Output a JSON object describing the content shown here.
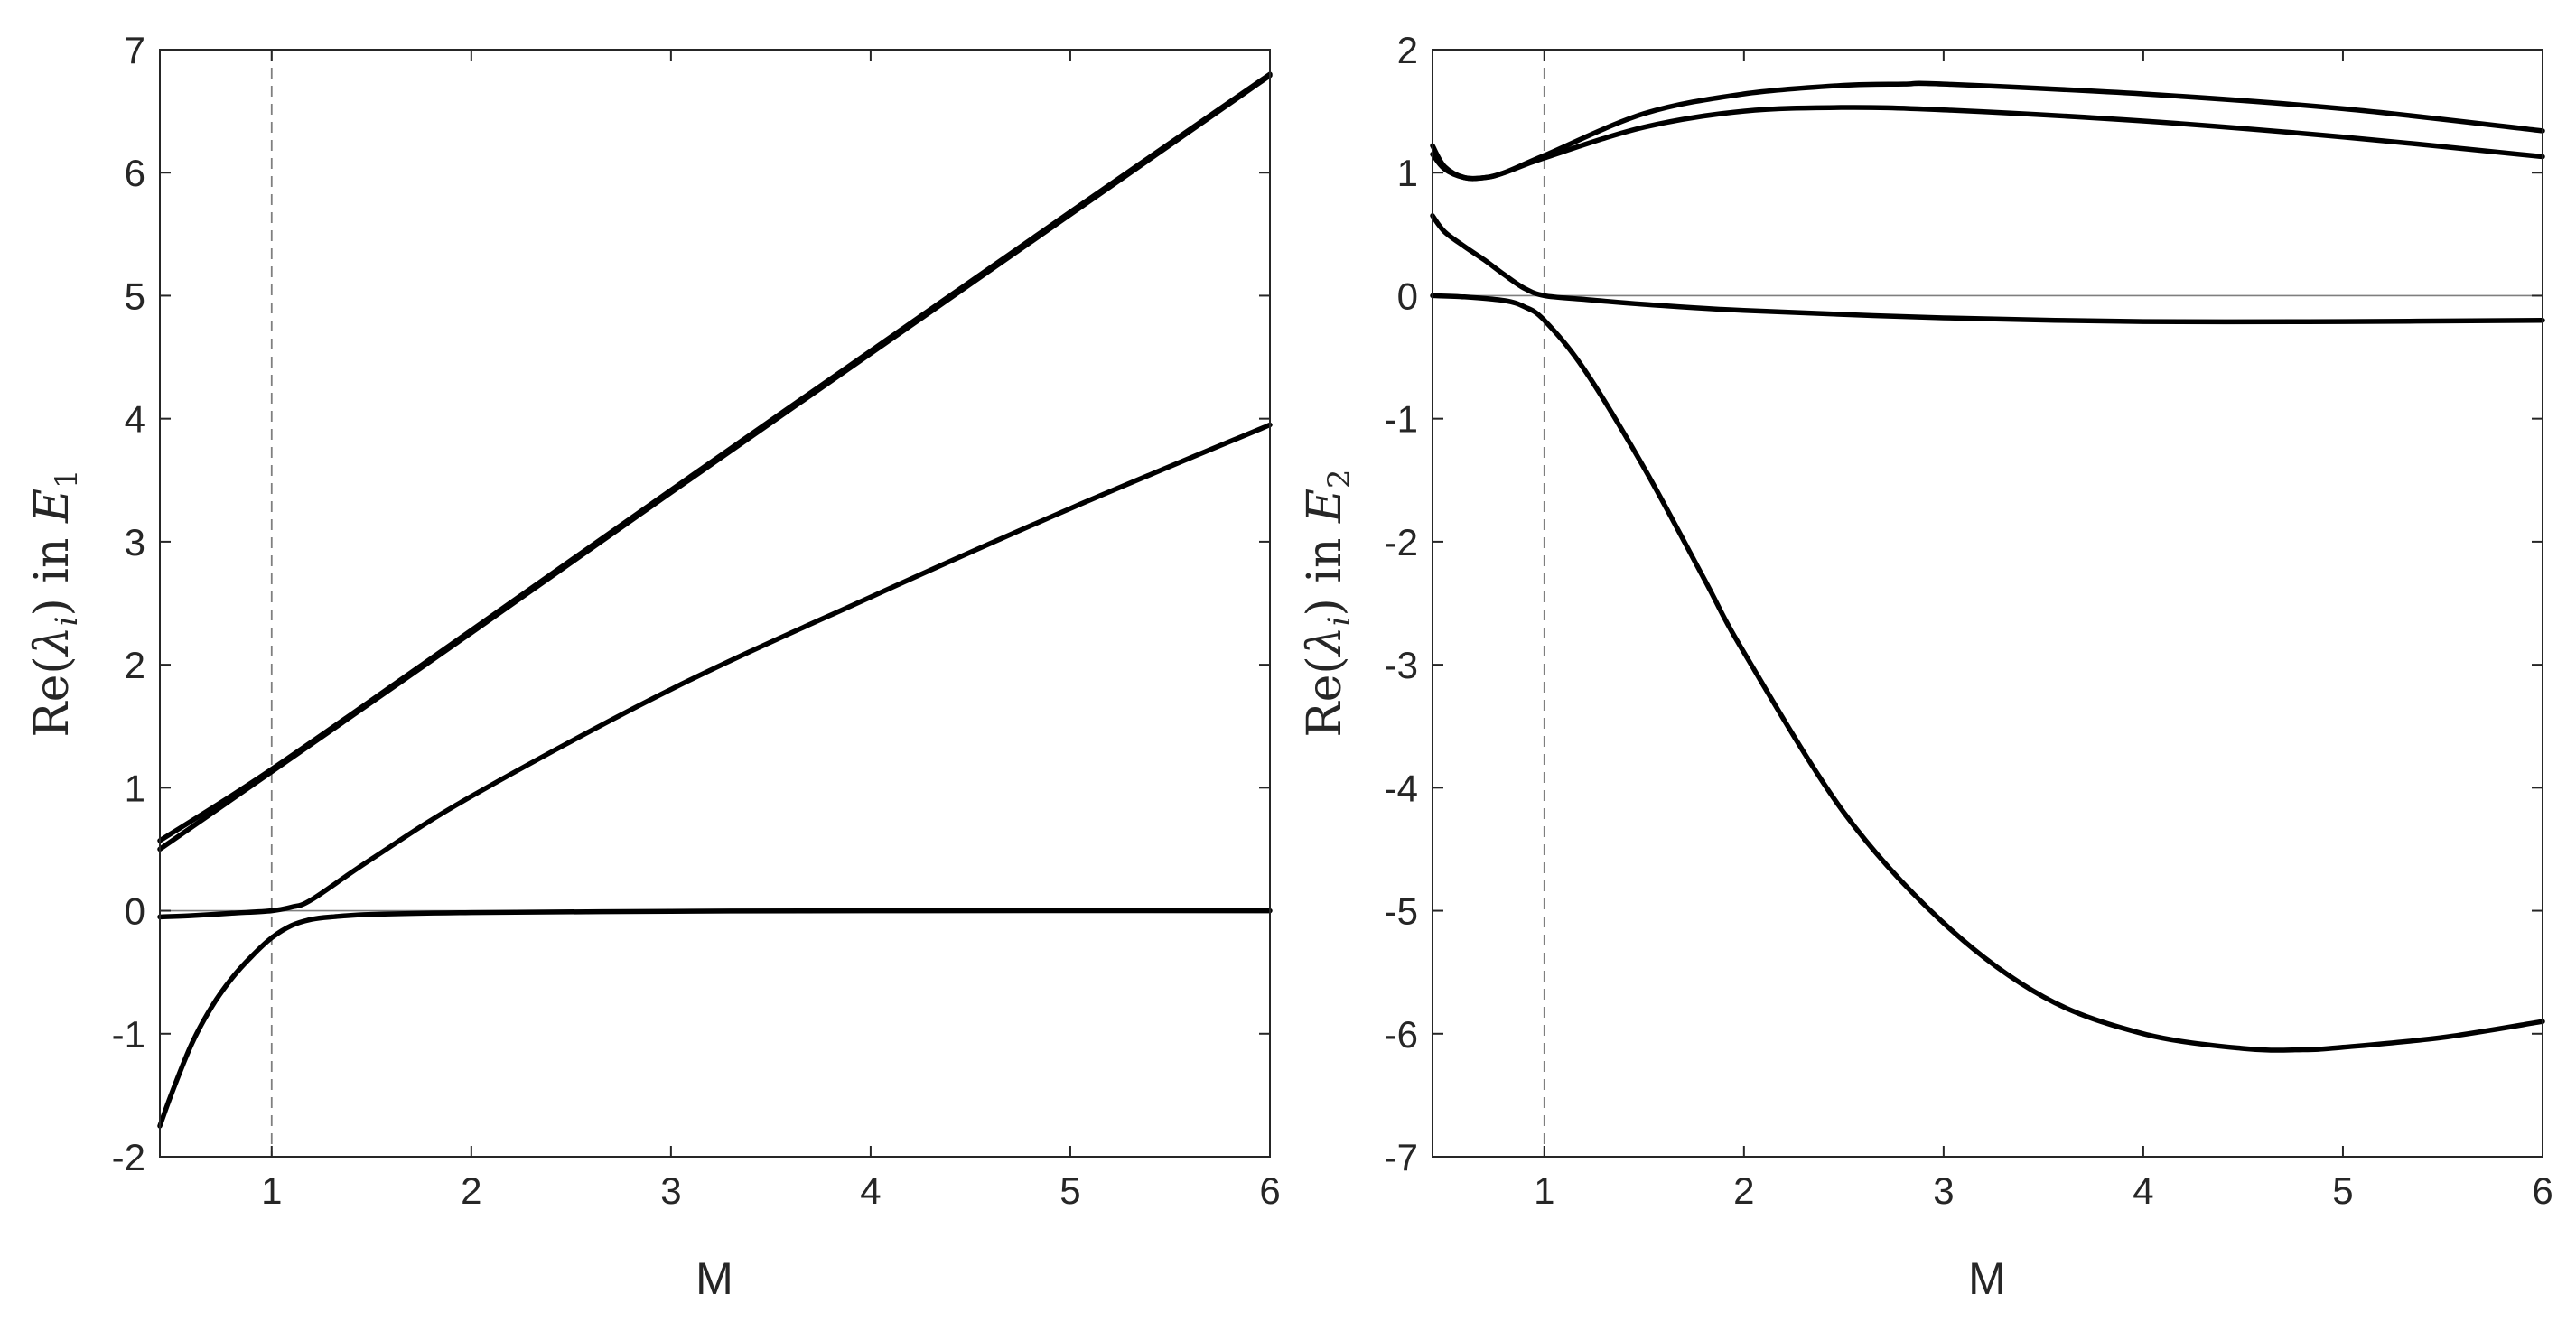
{
  "chart_data": [
    {
      "type": "line",
      "xlabel": "M",
      "ylabel": {
        "prefix": "Re(",
        "symbol": "λ",
        "sub": "i",
        "mid": ") in ",
        "var": "E",
        "var_sub": "1"
      },
      "xlim": [
        0.44,
        6
      ],
      "ylim": [
        -2,
        7
      ],
      "xticks": [
        1,
        2,
        3,
        4,
        5,
        6
      ],
      "yticks": [
        -2,
        -1,
        0,
        1,
        2,
        3,
        4,
        5,
        6,
        7
      ],
      "reference_lines": {
        "horizontal_y": 0,
        "vertical_dashed_x": 1
      },
      "grid": false,
      "series": [
        {
          "x": [
            0.44,
            1,
            2,
            3,
            4,
            5,
            6
          ],
          "y": [
            0.57,
            1.15,
            2.28,
            3.42,
            4.55,
            5.68,
            6.8
          ]
        },
        {
          "x": [
            0.44,
            1,
            2,
            3,
            4,
            5,
            6
          ],
          "y": [
            0.5,
            1.13,
            2.26,
            3.4,
            4.53,
            5.66,
            6.79
          ]
        },
        {
          "x": [
            0.44,
            0.6,
            0.8,
            1,
            1.1,
            1.2,
            1.5,
            2,
            3,
            4,
            5,
            6
          ],
          "y": [
            -0.05,
            -0.04,
            -0.02,
            0.0,
            0.03,
            0.09,
            0.42,
            0.93,
            1.8,
            2.55,
            3.27,
            3.95
          ]
        },
        {
          "x": [
            0.44,
            0.5,
            0.6,
            0.7,
            0.8,
            0.9,
            1,
            1.1,
            1.2,
            1.3,
            1.5,
            2,
            3,
            4,
            6
          ],
          "y": [
            -1.75,
            -1.48,
            -1.08,
            -0.78,
            -0.55,
            -0.37,
            -0.22,
            -0.12,
            -0.07,
            -0.05,
            -0.03,
            -0.015,
            -0.005,
            0.0,
            0.0
          ]
        }
      ]
    },
    {
      "type": "line",
      "xlabel": "M",
      "ylabel": {
        "prefix": "Re(",
        "symbol": "λ",
        "sub": "i",
        "mid": ") in ",
        "var": "E",
        "var_sub": "2"
      },
      "xlim": [
        0.44,
        6
      ],
      "ylim": [
        -7,
        2
      ],
      "xticks": [
        1,
        2,
        3,
        4,
        5,
        6
      ],
      "yticks": [
        -7,
        -6,
        -5,
        -4,
        -3,
        -2,
        -1,
        0,
        1,
        2
      ],
      "reference_lines": {
        "horizontal_y": 0,
        "vertical_dashed_x": 1
      },
      "grid": false,
      "series": [
        {
          "x": [
            0.44,
            0.5,
            0.6,
            0.7,
            0.8,
            1,
            1.5,
            2,
            2.5,
            2.8,
            3,
            4,
            5,
            6
          ],
          "y": [
            1.22,
            1.05,
            0.96,
            0.96,
            1.0,
            1.14,
            1.48,
            1.64,
            1.71,
            1.72,
            1.72,
            1.64,
            1.52,
            1.34
          ]
        },
        {
          "x": [
            0.44,
            0.5,
            0.6,
            0.7,
            0.8,
            1,
            1.5,
            2,
            2.5,
            3,
            4,
            5,
            6
          ],
          "y": [
            1.15,
            1.03,
            0.96,
            0.96,
            1.0,
            1.12,
            1.37,
            1.5,
            1.53,
            1.51,
            1.42,
            1.29,
            1.13
          ]
        },
        {
          "x": [
            0.44,
            0.5,
            0.6,
            0.7,
            0.8,
            0.9,
            1,
            1.2,
            1.5,
            2,
            3,
            4,
            5,
            6
          ],
          "y": [
            0.65,
            0.52,
            0.4,
            0.29,
            0.17,
            0.06,
            0.0,
            -0.03,
            -0.07,
            -0.12,
            -0.18,
            -0.21,
            -0.21,
            -0.2
          ]
        },
        {
          "x": [
            0.44,
            0.6,
            0.8,
            0.9,
            1,
            1.2,
            1.5,
            1.8,
            2,
            2.5,
            3,
            3.5,
            4,
            4.5,
            4.8,
            5,
            5.5,
            6
          ],
          "y": [
            0.0,
            -0.01,
            -0.04,
            -0.09,
            -0.2,
            -0.6,
            -1.4,
            -2.3,
            -2.9,
            -4.2,
            -5.1,
            -5.7,
            -6.0,
            -6.12,
            -6.13,
            -6.11,
            -6.03,
            -5.9
          ]
        }
      ]
    }
  ]
}
